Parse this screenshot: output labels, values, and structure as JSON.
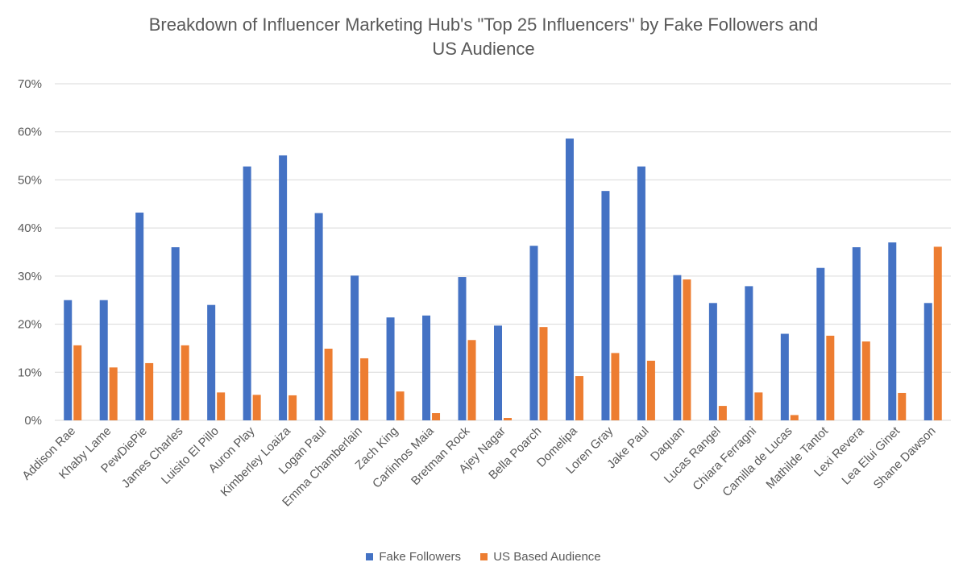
{
  "chart_data": {
    "type": "bar",
    "title": "Breakdown of Influencer Marketing Hub's \"Top 25 Influencers\" by Fake Followers and US Audience",
    "title_lines": [
      "Breakdown of Influencer Marketing Hub's \"Top 25 Influencers\" by Fake Followers and",
      "US Audience"
    ],
    "xlabel": "",
    "ylabel": "",
    "ylim": [
      0,
      0.7
    ],
    "yticks": [
      "0%",
      "10%",
      "20%",
      "30%",
      "40%",
      "50%",
      "60%",
      "70%"
    ],
    "grid": true,
    "legend_position": "bottom",
    "categories": [
      "Addison Rae",
      "Khaby Lame",
      "PewDiePie",
      "James Charles",
      "Luisito El Pillo",
      "Auron Play",
      "Kimberley Loaiza",
      "Logan Paul",
      "Emma Chamberlain",
      "Zach King",
      "Carlinhos Maia",
      "Bretman Rock",
      "Ajey Nagar",
      "Bella Poarch",
      "Domelipa",
      "Loren Gray",
      "Jake Paul",
      "Daquan",
      "Lucas Rangel",
      "Chiara Ferragni",
      "Camilla de Lucas",
      "Mathilde Tantot",
      "Lexi Revera",
      "Lea Elui Ginet",
      "Shane Dawson"
    ],
    "series": [
      {
        "name": "Fake Followers",
        "color": "#4472C4",
        "values": [
          0.25,
          0.25,
          0.432,
          0.36,
          0.24,
          0.528,
          0.551,
          0.431,
          0.301,
          0.214,
          0.218,
          0.298,
          0.197,
          0.363,
          0.586,
          0.477,
          0.528,
          0.302,
          0.244,
          0.279,
          0.18,
          0.317,
          0.36,
          0.37,
          0.244
        ]
      },
      {
        "name": "US Based Audience",
        "color": "#ED7D31",
        "values": [
          0.156,
          0.11,
          0.119,
          0.156,
          0.058,
          0.053,
          0.052,
          0.149,
          0.129,
          0.06,
          0.015,
          0.167,
          0.005,
          0.194,
          0.092,
          0.14,
          0.124,
          0.293,
          0.03,
          0.058,
          0.011,
          0.176,
          0.164,
          0.057,
          0.361
        ]
      }
    ]
  }
}
